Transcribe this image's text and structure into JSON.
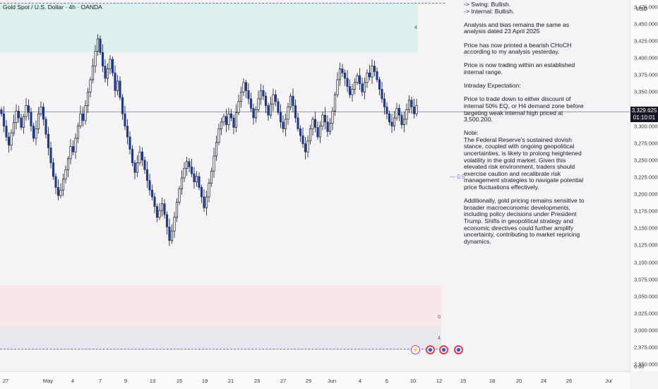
{
  "header": {
    "symbol_title": "Gold Spot / U.S. Dollar · 4h · OANDA",
    "currency": "USD"
  },
  "price_tag": {
    "price": "3,329.625",
    "countdown": "01:10:01"
  },
  "zone_labels": {
    "supply_tag": "4",
    "demand_tag": "0",
    "grey_tag": "4",
    "eq_label": "— 0.5"
  },
  "analysis_text": [
    "-> Swing:  Bullish.\n-> Internal:  Bullish.",
    "Analysis and bias remains the same as analysis dated 23 April 2025",
    "Price has now printed a bearish CHoCH according to my analysis yesterday.",
    "Price is now trading within an established internal range.",
    "Intraday Expectation:",
    "Price to trade down to either discount of internal 50% EQ, or H4 demand zone before targeting weak internal high priced at 3,500.200.",
    "Note:\nThe Federal Reserve's sustained dovish stance, coupled with ongoing geopolitical uncertainties, is likely to prolong heightened volatility in the gold market. Given this elevated risk environment, traders should exercise caution and recalibrate risk management strategies to navigate potential price fluctuations effectively.",
    "Additionally, gold pricing remains sensitive to broader macroeconomic developments, including policy decisions under President Trump. Shifts in geopolitical strategy and economic directives could further amplify uncertainty, contributing to market repricing dynamics."
  ],
  "event_icons": [
    "flash-event-icon",
    "us-flag-icon",
    "us-flag-icon",
    "us-flag-icon"
  ],
  "chart_data": {
    "type": "candlestick",
    "title": "Gold Spot / U.S. Dollar · 4h · OANDA",
    "ylabel": "USD",
    "ylim": [
      2940,
      3485
    ],
    "y_ticks": [
      3475,
      3450,
      3425,
      3400,
      3375,
      3350,
      3325,
      3300,
      3275,
      3250,
      3225,
      3200,
      3175,
      3150,
      3125,
      3100,
      3075,
      3050,
      3025,
      3000,
      2975,
      2950
    ],
    "y_tick_labels": [
      "3,475.000",
      "3,450.000",
      "3,425.000",
      "3,400.000",
      "3,375.000",
      "3,350.000",
      "3,325.000",
      "3,300.000",
      "3,275.000",
      "3,250.000",
      "3,225.000",
      "3,200.000",
      "3,175.000",
      "3,150.000",
      "3,125.000",
      "3,100.000",
      "3,075.000",
      "3,050.000",
      "3,025.000",
      "3,000.000",
      "2,975.000",
      "2,950.000"
    ],
    "y_zero_label": "0.00",
    "x_tick_labels": [
      "27",
      "May",
      "4",
      "7",
      "9",
      "13",
      "15",
      "19",
      "21",
      "23",
      "27",
      "29",
      "Jun",
      "4",
      "6",
      "10",
      "12",
      "15",
      "18",
      "20",
      "24",
      "26",
      "Jul"
    ],
    "current_price": 3329.625,
    "zones": [
      {
        "name": "H4 supply zone",
        "from": 3420,
        "to": 3483
      },
      {
        "name": "H4 demand zone",
        "from": 3000,
        "to": 3052
      },
      {
        "name": "lower zone",
        "from": 2971,
        "to": 3000
      }
    ],
    "dashed_levels": [
      3485,
      2956
    ],
    "bullish_color": "#ffffff",
    "bearish_color": "#1e3a8a",
    "wick_color": "#131722",
    "closes": [
      3318,
      3300,
      3284,
      3272,
      3290,
      3305,
      3322,
      3312,
      3298,
      3314,
      3330,
      3320,
      3300,
      3282,
      3296,
      3318,
      3328,
      3310,
      3288,
      3268,
      3246,
      3226,
      3210,
      3198,
      3206,
      3222,
      3236,
      3252,
      3270,
      3262,
      3282,
      3300,
      3318,
      3308,
      3330,
      3350,
      3368,
      3388,
      3410,
      3428,
      3408,
      3388,
      3370,
      3384,
      3398,
      3378,
      3352,
      3366,
      3342,
      3318,
      3300,
      3284,
      3266,
      3246,
      3232,
      3246,
      3262,
      3250,
      3236,
      3220,
      3206,
      3196,
      3182,
      3166,
      3176,
      3186,
      3170,
      3152,
      3132,
      3146,
      3166,
      3188,
      3208,
      3224,
      3238,
      3248,
      3240,
      3230,
      3218,
      3226,
      3210,
      3196,
      3180,
      3196,
      3216,
      3234,
      3256,
      3276,
      3296,
      3306,
      3314,
      3302,
      3318,
      3312,
      3298,
      3320,
      3336,
      3350,
      3364,
      3352,
      3340,
      3326,
      3312,
      3324,
      3340,
      3352,
      3344,
      3330,
      3316,
      3332,
      3346,
      3336,
      3320,
      3306,
      3296,
      3310,
      3328,
      3344,
      3330,
      3312,
      3296,
      3286,
      3274,
      3262,
      3278,
      3296,
      3310,
      3298,
      3284,
      3300,
      3316,
      3306,
      3292,
      3304,
      3322,
      3346,
      3368,
      3384,
      3378,
      3370,
      3358,
      3346,
      3354,
      3364,
      3374,
      3362,
      3350,
      3364,
      3378,
      3372,
      3388,
      3380,
      3368,
      3354,
      3340,
      3328,
      3318,
      3306,
      3300,
      3312,
      3326,
      3316,
      3302,
      3310,
      3324,
      3338,
      3328,
      3318,
      3330
    ]
  }
}
